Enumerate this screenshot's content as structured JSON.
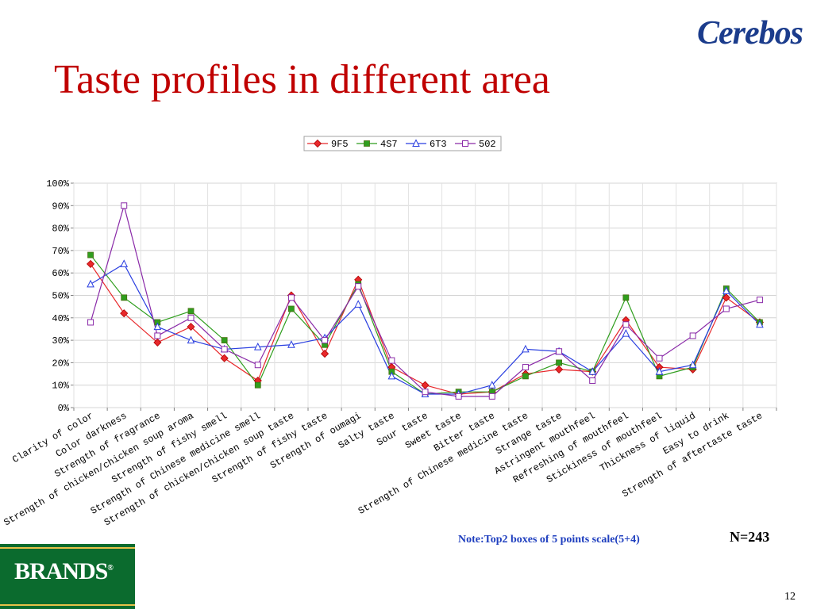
{
  "slide": {
    "title": "Taste profiles in different area",
    "logo_top_right": "Cerebos",
    "logo_bottom_left": "BRANDS",
    "note": "Note:Top2 boxes of 5 points scale(5+4)",
    "sample_size": "N=243",
    "page_number": "12"
  },
  "colors": {
    "title": "#c00000",
    "note": "#1f3fbf",
    "brands_bg": "#0b6b2e",
    "logo": "#1b3c8c"
  },
  "chart_data": {
    "type": "line",
    "title": "",
    "xlabel": "",
    "ylabel": "",
    "ylim": [
      0,
      100
    ],
    "y_ticks": [
      "0%",
      "10%",
      "20%",
      "30%",
      "40%",
      "50%",
      "60%",
      "70%",
      "80%",
      "90%",
      "100%"
    ],
    "grid": true,
    "legend_position": "top",
    "categories": [
      "Clarity of color",
      "Color darkness",
      "Strength of fragrance",
      "Strength of chicken/chicken soup aroma",
      "Strength of fishy smell",
      "Strength of Chinese medicine smell",
      "Strength of chicken/chicken soup taste",
      "Strength of fishy taste",
      "Strength of oumagi",
      "Salty taste",
      "Sour taste",
      "Sweet taste",
      "Bitter taste",
      "Strength of Chinese medicine taste",
      "Strange taste",
      "Astringent mouthfeel",
      "Refreshing of mouthfeel",
      "Stickiness of mouthfeel",
      "Thickness of liquid",
      "Easy to drink",
      "Strength of aftertaste taste"
    ],
    "series": [
      {
        "name": "9F5",
        "color": "#e8282b",
        "marker": "diamond",
        "values": [
          64,
          42,
          29,
          36,
          22,
          12,
          50,
          24,
          57,
          18,
          10,
          6,
          7,
          15,
          17,
          16,
          39,
          18,
          17,
          49,
          38
        ]
      },
      {
        "name": "4S7",
        "color": "#2f9e1e",
        "marker": "square",
        "values": [
          68,
          49,
          38,
          43,
          30,
          10,
          44,
          28,
          55,
          16,
          6,
          7,
          7,
          14,
          20,
          16,
          49,
          14,
          18,
          53,
          38
        ]
      },
      {
        "name": "6T3",
        "color": "#2a3fe0",
        "marker": "triangle",
        "values": [
          55,
          64,
          36,
          30,
          26,
          27,
          28,
          31,
          46,
          14,
          6,
          6,
          10,
          26,
          25,
          16,
          33,
          16,
          19,
          52,
          37
        ]
      },
      {
        "name": "502",
        "color": "#8a2aa8",
        "marker": "square-open",
        "values": [
          38,
          90,
          32,
          40,
          26,
          19,
          49,
          30,
          54,
          21,
          7,
          5,
          5,
          18,
          25,
          12,
          37,
          22,
          32,
          44,
          48
        ]
      }
    ]
  }
}
